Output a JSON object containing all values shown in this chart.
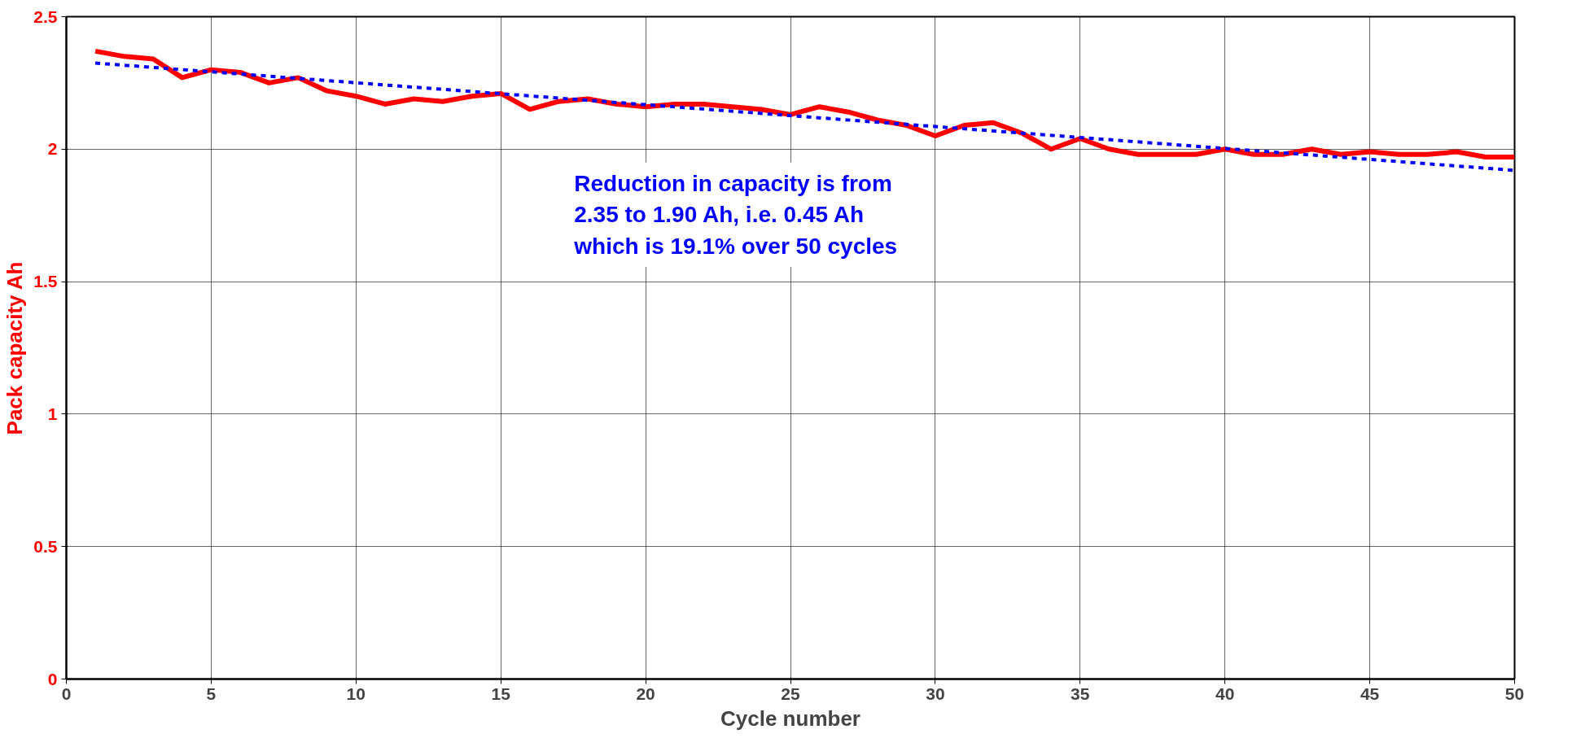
{
  "chart_data": {
    "type": "line",
    "xlabel": "Cycle number",
    "ylabel": "Pack capacity Ah",
    "xlim": [
      0,
      50
    ],
    "xticks": [
      0,
      5,
      10,
      15,
      20,
      25,
      30,
      35,
      40,
      45,
      50
    ],
    "ylim": [
      0,
      2.5
    ],
    "yticks": [
      0,
      0.5,
      1,
      1.5,
      2,
      2.5
    ],
    "grid": true,
    "annotations": [
      "Reduction in capacity is from\n2.35 to 1.90 Ah, i.e. 0.45 Ah\nwhich is 19.1% over 50 cycles"
    ],
    "series": [
      {
        "color": "#ff0000",
        "line_style": "solid",
        "x": [
          1,
          2,
          3,
          4,
          5,
          6,
          7,
          8,
          9,
          10,
          11,
          12,
          13,
          14,
          15,
          16,
          17,
          18,
          19,
          20,
          21,
          22,
          23,
          24,
          25,
          26,
          27,
          28,
          29,
          30,
          31,
          32,
          33,
          34,
          35,
          36,
          37,
          38,
          39,
          40,
          41,
          42,
          43,
          44,
          45,
          46,
          47,
          48,
          49,
          50
        ],
        "values": [
          2.37,
          2.35,
          2.34,
          2.27,
          2.3,
          2.29,
          2.25,
          2.27,
          2.22,
          2.2,
          2.17,
          2.19,
          2.18,
          2.2,
          2.21,
          2.15,
          2.18,
          2.19,
          2.17,
          2.16,
          2.17,
          2.17,
          2.16,
          2.15,
          2.13,
          2.16,
          2.14,
          2.11,
          2.09,
          2.05,
          2.09,
          2.1,
          2.06,
          2.0,
          2.04,
          2.0,
          1.98,
          1.98,
          1.98,
          2.0,
          1.98,
          1.98,
          2.0,
          1.98,
          1.99,
          1.98,
          1.98,
          1.99,
          1.97,
          1.97
        ]
      },
      {
        "color": "#0000ff",
        "line_style": "dashed",
        "x": [
          1,
          50
        ],
        "values": [
          2.325,
          1.92
        ]
      }
    ]
  }
}
